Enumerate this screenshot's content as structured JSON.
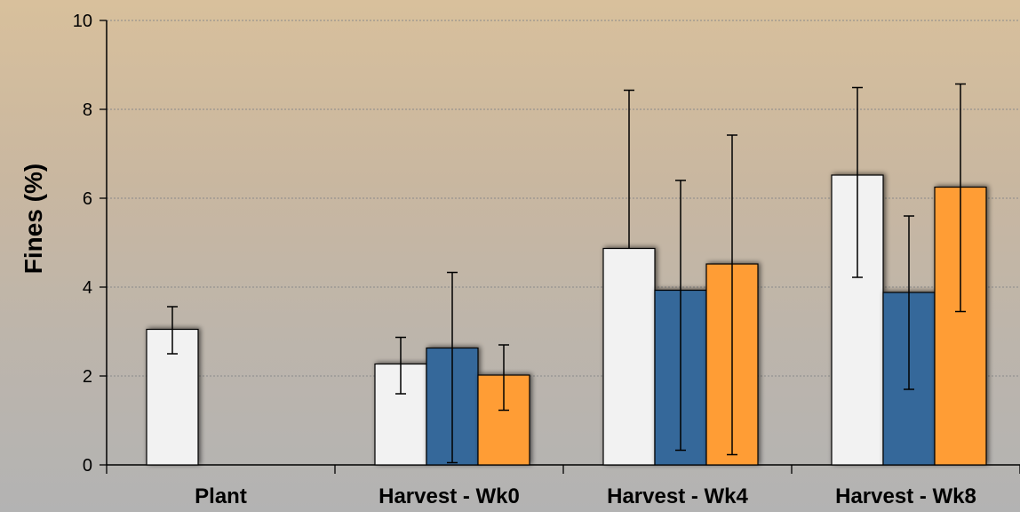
{
  "chart_data": {
    "type": "bar",
    "ylabel": "Fines (%)",
    "ylim": [
      0,
      10
    ],
    "yticks": [
      0,
      2,
      4,
      6,
      8,
      10
    ],
    "grid": true,
    "categories": [
      "Plant",
      "Harvest - Wk0",
      "Harvest - Wk4",
      "Harvest - Wk8"
    ],
    "series": [
      {
        "color": "#f2f2f2",
        "values": [
          3.05,
          2.27,
          4.87,
          6.52
        ],
        "error_low": [
          2.5,
          1.6,
          null,
          4.22
        ],
        "error_high": [
          3.56,
          2.87,
          8.43,
          8.49
        ]
      },
      {
        "color": "#34679a",
        "values": [
          null,
          2.63,
          3.93,
          3.88
        ],
        "error_low": [
          null,
          0.05,
          0.33,
          1.7
        ],
        "error_high": [
          null,
          4.33,
          6.4,
          5.6
        ]
      },
      {
        "color": "#ff9d35",
        "values": [
          null,
          2.02,
          4.52,
          6.25
        ],
        "error_low": [
          null,
          1.23,
          0.23,
          3.45
        ],
        "error_high": [
          null,
          2.7,
          7.42,
          8.57
        ]
      }
    ]
  }
}
